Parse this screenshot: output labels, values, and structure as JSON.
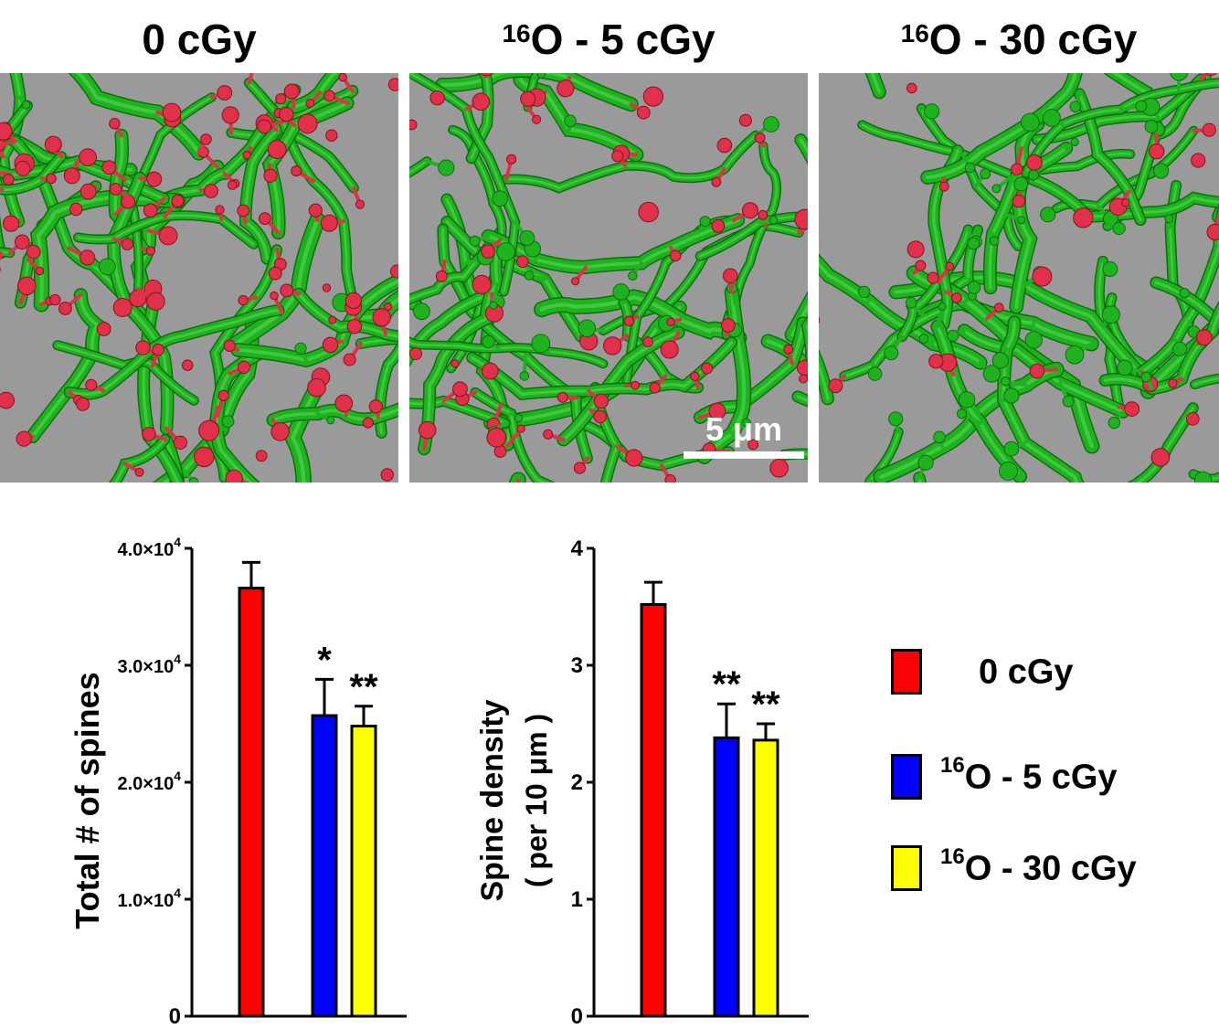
{
  "panels": [
    {
      "pre": "",
      "label": "0 cGy",
      "seed": 11,
      "redFrac": 0.48
    },
    {
      "pre": "16",
      "label": "O - 5 cGy",
      "seed": 29,
      "redFrac": 0.3
    },
    {
      "pre": "16",
      "label": "O - 30 cGy",
      "seed": 53,
      "redFrac": 0.16
    }
  ],
  "scale_bar": {
    "label": "5 μm"
  },
  "legend": [
    {
      "pre": "",
      "label": "0 cGy",
      "color": "#ff0000"
    },
    {
      "pre": "16",
      "label": "O - 5 cGy",
      "color": "#0000ff"
    },
    {
      "pre": "16",
      "label": "O - 30 cGy",
      "color": "#ffff00"
    }
  ],
  "colors": {
    "dendrite": "#1fb21f",
    "spine": "#e0304a",
    "background": "#9a9a9a"
  },
  "chart_data": [
    {
      "type": "bar",
      "categories": [
        "0 cGy",
        "16O - 5 cGy",
        "16O - 30 cGy"
      ],
      "values": [
        36600,
        25700,
        24800
      ],
      "errors": [
        2200,
        3100,
        1700
      ],
      "significance": [
        "",
        "*",
        "**"
      ],
      "colors": [
        "#ff0000",
        "#0000ff",
        "#ffff00"
      ],
      "ylabel": "Total # of spines",
      "ylim": [
        0,
        40000
      ],
      "yticks": [
        0,
        10000,
        20000,
        30000,
        40000
      ],
      "ytick_labels": [
        "0",
        "1.0×10",
        "2.0×10",
        "3.0×10",
        "4.0×10"
      ],
      "ytick_exp": [
        "",
        "4",
        "4",
        "4",
        "4"
      ]
    },
    {
      "type": "bar",
      "categories": [
        "0 cGy",
        "16O - 5 cGy",
        "16O - 30 cGy"
      ],
      "values": [
        3.52,
        2.38,
        2.36
      ],
      "errors": [
        0.19,
        0.29,
        0.14
      ],
      "significance": [
        "",
        "**",
        "**"
      ],
      "colors": [
        "#ff0000",
        "#0000ff",
        "#ffff00"
      ],
      "ylabel": "Spine density",
      "ylabel2": "( per 10 μm )",
      "ylim": [
        0,
        4
      ],
      "yticks": [
        0,
        1,
        2,
        3,
        4
      ],
      "ytick_labels": [
        "0",
        "1",
        "2",
        "3",
        "4"
      ],
      "ytick_exp": [
        "",
        "",
        "",
        "",
        ""
      ]
    }
  ]
}
